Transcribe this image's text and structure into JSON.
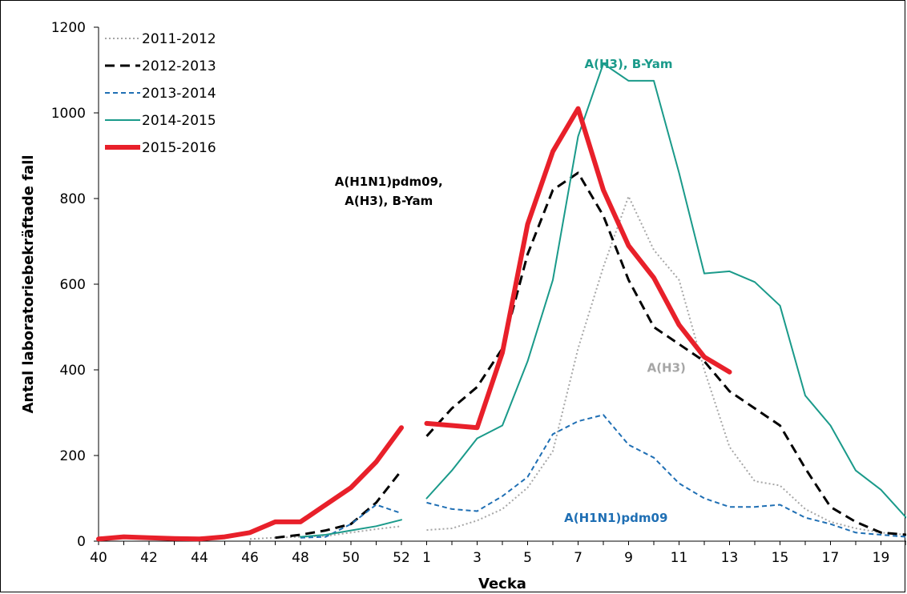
{
  "chart_data": {
    "type": "line",
    "xlabel": "Vecka",
    "ylabel": "Antal laboratoriebekräftade fall",
    "ylim": [
      0,
      1200
    ],
    "yticks": [
      "0",
      "200",
      "400",
      "600",
      "800",
      "1000",
      "1200"
    ],
    "weeks": [
      40,
      41,
      42,
      43,
      44,
      45,
      46,
      47,
      48,
      49,
      50,
      51,
      52,
      1,
      2,
      3,
      4,
      5,
      6,
      7,
      8,
      9,
      10,
      11,
      12,
      13,
      14,
      15,
      16,
      17,
      18,
      19,
      20
    ],
    "xtick_labels": [
      "40",
      "42",
      "44",
      "46",
      "48",
      "50",
      "52",
      "1",
      "3",
      "5",
      "7",
      "9",
      "11",
      "13",
      "15",
      "17",
      "19"
    ],
    "legend_position": "top-left",
    "series": [
      {
        "name": "2011-2012",
        "color": "#a6a6a6",
        "style": "dotted",
        "values": [
          null,
          null,
          null,
          null,
          null,
          null,
          5,
          8,
          10,
          12,
          20,
          28,
          35,
          26,
          30,
          48,
          75,
          125,
          210,
          450,
          640,
          805,
          680,
          610,
          400,
          220,
          140,
          130,
          75,
          45,
          30,
          20,
          15
        ]
      },
      {
        "name": "2012-2013",
        "color": "#000000",
        "style": "dashed",
        "values": [
          null,
          null,
          null,
          null,
          null,
          null,
          null,
          8,
          15,
          25,
          40,
          90,
          165,
          245,
          310,
          360,
          450,
          670,
          820,
          860,
          760,
          610,
          500,
          460,
          420,
          350,
          310,
          270,
          170,
          80,
          45,
          20,
          15
        ]
      },
      {
        "name": "2013-2014",
        "color": "#1f6fb4",
        "style": "dashed-short",
        "values": [
          null,
          null,
          null,
          null,
          null,
          null,
          null,
          null,
          8,
          10,
          40,
          85,
          65,
          90,
          75,
          70,
          105,
          150,
          250,
          280,
          295,
          225,
          195,
          135,
          100,
          80,
          80,
          85,
          55,
          40,
          20,
          15,
          10
        ]
      },
      {
        "name": "2014-2015",
        "color": "#1a9a8a",
        "style": "solid",
        "values": [
          null,
          null,
          null,
          null,
          null,
          null,
          null,
          null,
          10,
          15,
          25,
          35,
          50,
          100,
          165,
          240,
          270,
          420,
          610,
          945,
          1115,
          1075,
          1075,
          860,
          625,
          630,
          605,
          550,
          340,
          270,
          165,
          120,
          55
        ]
      },
      {
        "name": "2015-2016",
        "color": "#e8202a",
        "style": "thick",
        "values": [
          5,
          10,
          8,
          6,
          5,
          10,
          20,
          45,
          45,
          85,
          125,
          185,
          265,
          275,
          270,
          265,
          440,
          740,
          910,
          1010,
          820,
          690,
          615,
          505,
          430,
          395,
          null,
          null,
          null,
          null,
          null,
          null,
          null
        ]
      }
    ],
    "annotations": [
      {
        "text": "A(H3), B-Yam",
        "color": "#1a9a8a",
        "week_index": 21,
        "y": 1105
      },
      {
        "text": "A(H1N1)pdm09,",
        "color": "#000000",
        "week_index": 11.5,
        "y": 830
      },
      {
        "text": "A(H3), B-Yam",
        "color": "#000000",
        "week_index": 11.5,
        "y": 785
      },
      {
        "text": "A(H3)",
        "color": "#a6a6a6",
        "week_index": 22.5,
        "y": 395
      },
      {
        "text": "A(H1N1)pdm09",
        "color": "#1f6fb4",
        "week_index": 20.5,
        "y": 45
      }
    ]
  }
}
